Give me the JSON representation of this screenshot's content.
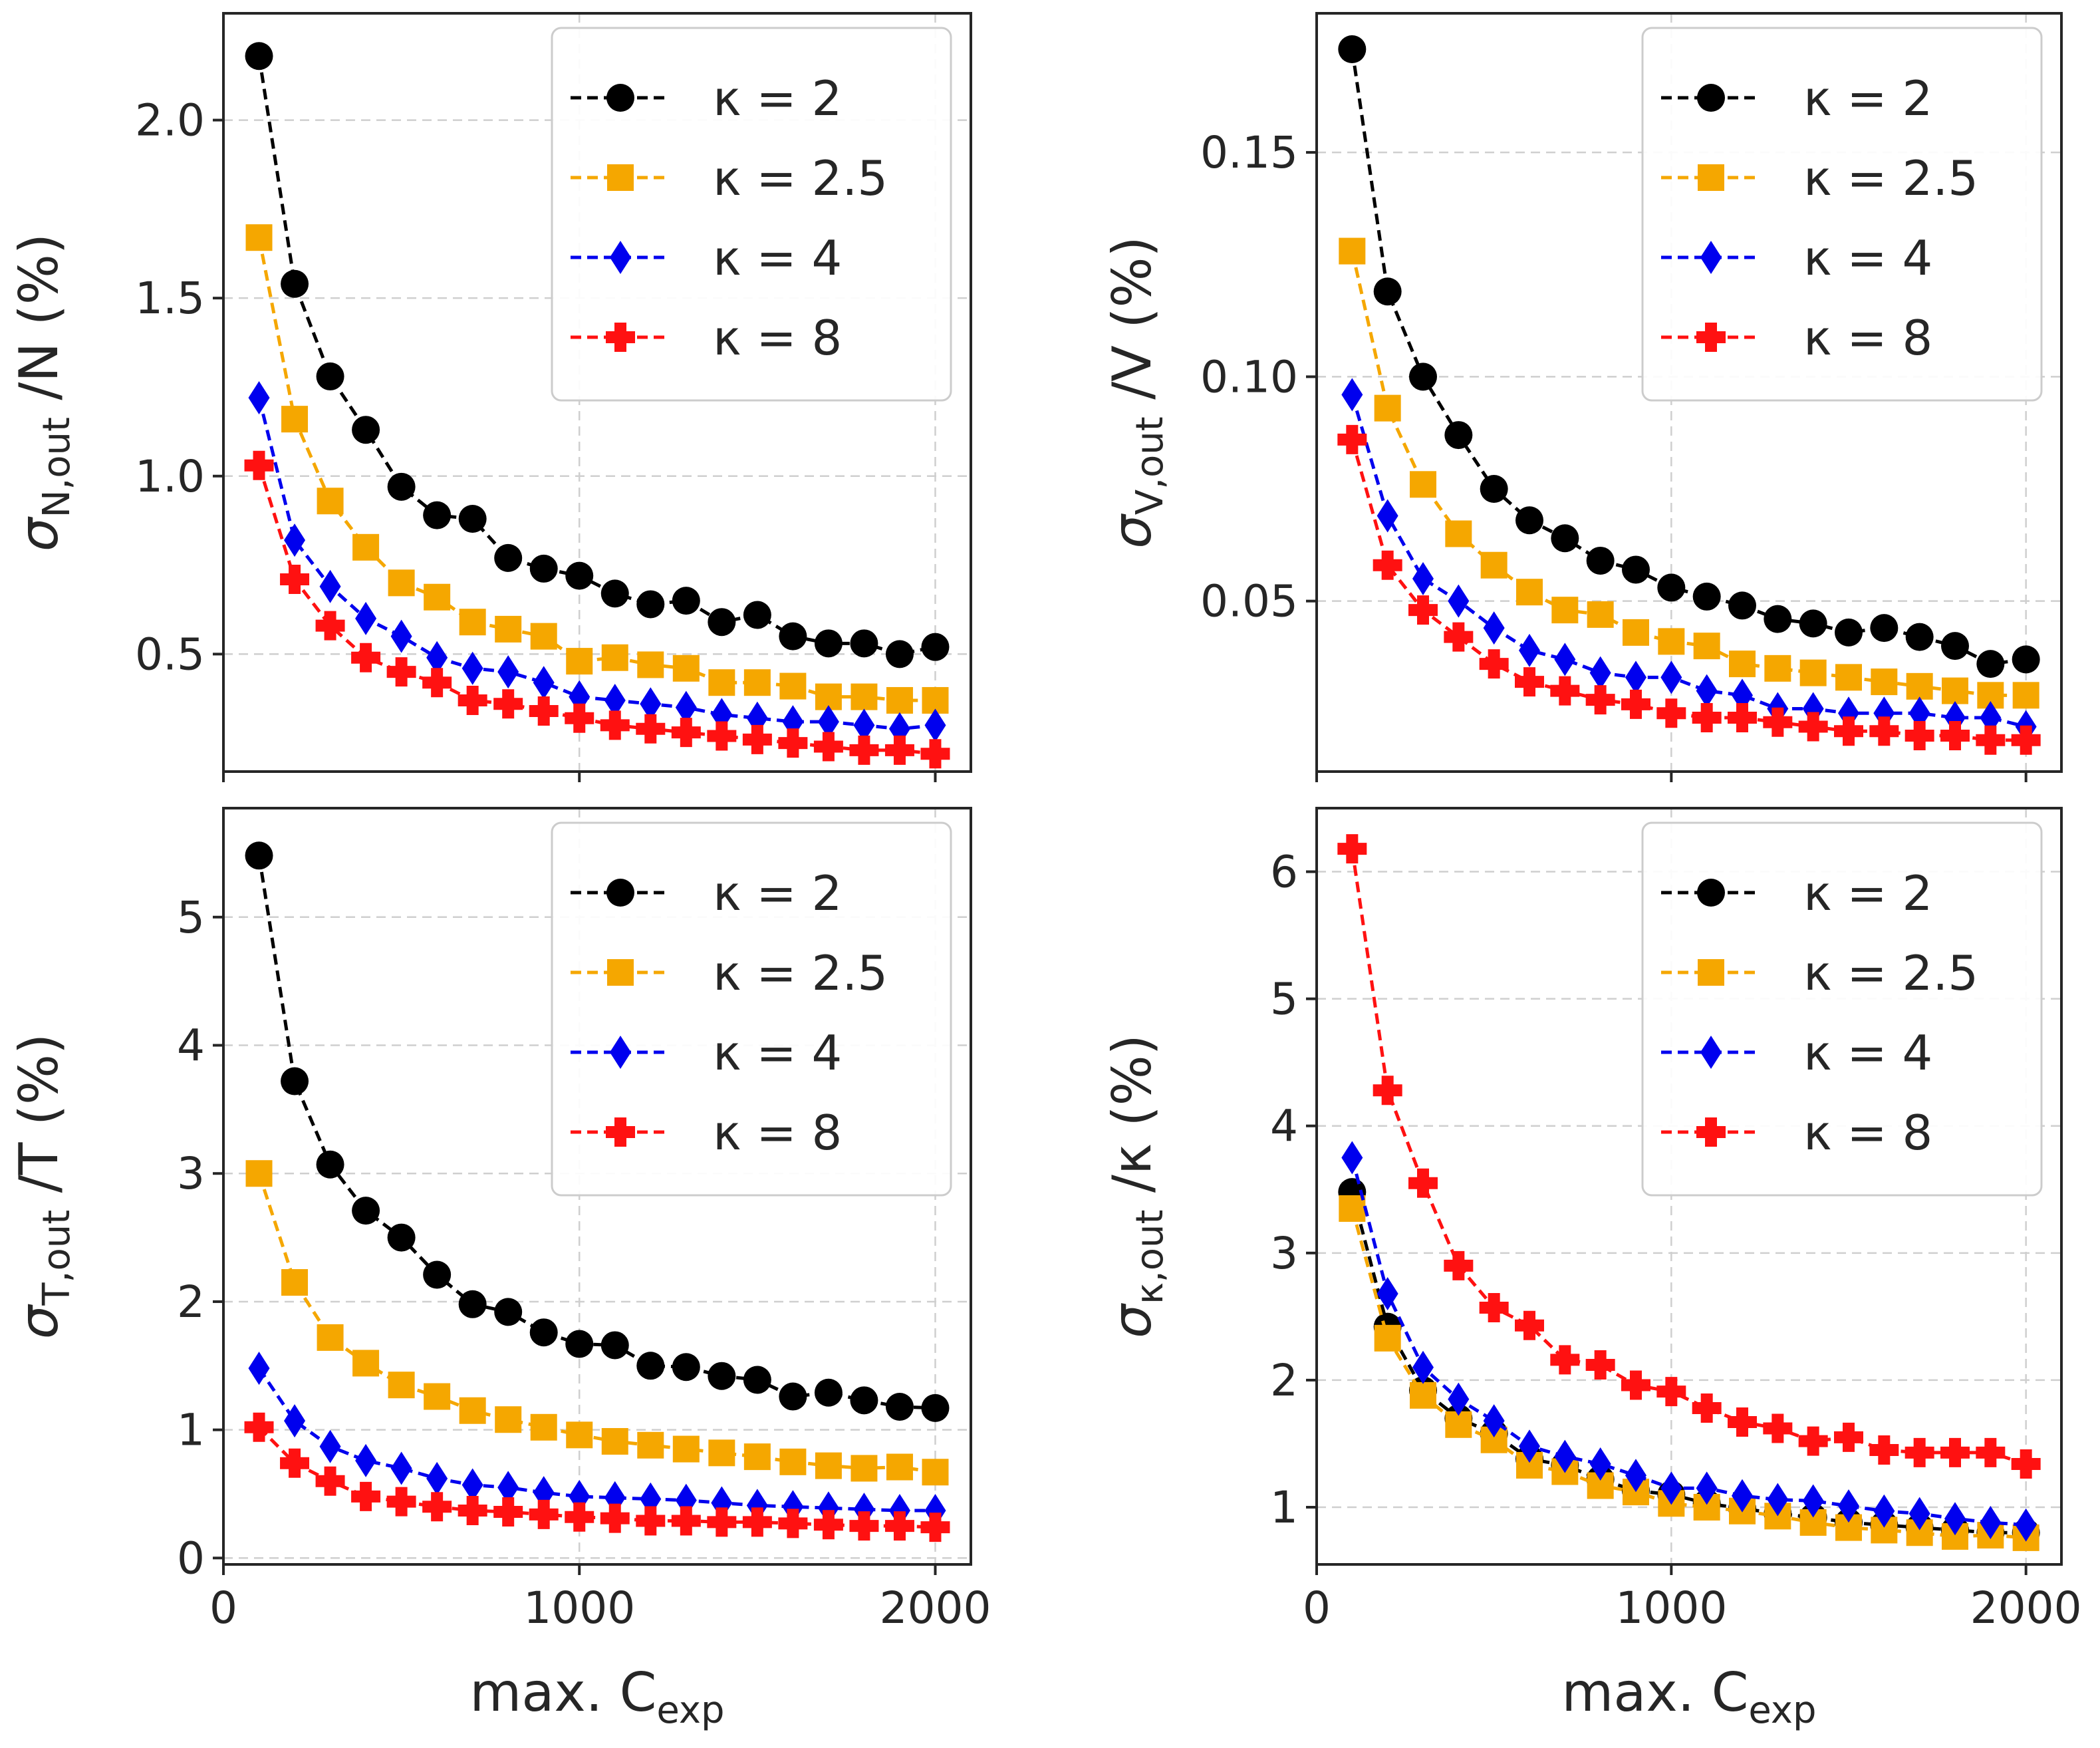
{
  "colors": {
    "k2": "#000000",
    "k25": "#f5a700",
    "k4": "#0000ee",
    "k8": "#ff1111"
  },
  "chart_data": [
    {
      "type": "line",
      "id": "N",
      "ylabel": {
        "main": "σ",
        "sub": "N,out",
        "tail": "/N (%)"
      },
      "xlabel": {
        "main": "max. C",
        "sub": "exp"
      },
      "xlim": [
        0,
        2100
      ],
      "ylim": [
        0.17,
        2.3
      ],
      "xticks": [
        0,
        1000,
        2000
      ],
      "xtick_labels": [
        "",
        "",
        ""
      ],
      "yticks": [
        0.5,
        1.0,
        1.5,
        2.0
      ],
      "ytick_labels": [
        "0.5",
        "1.0",
        "1.5",
        "2.0"
      ],
      "legend": "top-right",
      "x": [
        100,
        200,
        300,
        400,
        500,
        600,
        700,
        800,
        900,
        1000,
        1100,
        1200,
        1300,
        1400,
        1500,
        1600,
        1700,
        1800,
        1900,
        2000
      ],
      "series": [
        {
          "name": "κ = 2",
          "key": "k2",
          "marker": "circle",
          "values": [
            2.18,
            1.54,
            1.28,
            1.13,
            0.97,
            0.89,
            0.88,
            0.77,
            0.74,
            0.72,
            0.67,
            0.64,
            0.65,
            0.59,
            0.61,
            0.55,
            0.53,
            0.53,
            0.5,
            0.52
          ]
        },
        {
          "name": "κ = 2.5",
          "key": "k25",
          "marker": "square",
          "values": [
            1.67,
            1.16,
            0.93,
            0.8,
            0.7,
            0.66,
            0.59,
            0.57,
            0.55,
            0.48,
            0.49,
            0.47,
            0.46,
            0.42,
            0.42,
            0.41,
            0.38,
            0.38,
            0.37,
            0.37
          ]
        },
        {
          "name": "κ = 4",
          "key": "k4",
          "marker": "diamond",
          "values": [
            1.22,
            0.82,
            0.69,
            0.6,
            0.55,
            0.49,
            0.46,
            0.45,
            0.42,
            0.38,
            0.37,
            0.36,
            0.35,
            0.33,
            0.32,
            0.31,
            0.31,
            0.3,
            0.29,
            0.3
          ]
        },
        {
          "name": "κ = 8",
          "key": "k8",
          "marker": "plus",
          "values": [
            1.03,
            0.71,
            0.58,
            0.49,
            0.45,
            0.42,
            0.37,
            0.36,
            0.34,
            0.32,
            0.3,
            0.29,
            0.28,
            0.27,
            0.26,
            0.25,
            0.24,
            0.23,
            0.23,
            0.22
          ]
        }
      ]
    },
    {
      "type": "line",
      "id": "V",
      "ylabel": {
        "main": "σ",
        "sub": "V,out",
        "tail": "/V (%)"
      },
      "xlabel": {
        "main": "max. C",
        "sub": "exp"
      },
      "xlim": [
        0,
        2100
      ],
      "ylim": [
        0.012,
        0.181
      ],
      "xticks": [
        0,
        1000,
        2000
      ],
      "xtick_labels": [
        "",
        "",
        ""
      ],
      "yticks": [
        0.05,
        0.1,
        0.15
      ],
      "ytick_labels": [
        "0.05",
        "0.10",
        "0.15"
      ],
      "legend": "top-right",
      "x": [
        100,
        200,
        300,
        400,
        500,
        600,
        700,
        800,
        900,
        1000,
        1100,
        1200,
        1300,
        1400,
        1500,
        1600,
        1700,
        1800,
        1900,
        2000
      ],
      "series": [
        {
          "name": "κ = 2",
          "key": "k2",
          "marker": "circle",
          "values": [
            0.173,
            0.119,
            0.1,
            0.087,
            0.075,
            0.068,
            0.064,
            0.059,
            0.057,
            0.053,
            0.051,
            0.049,
            0.046,
            0.045,
            0.043,
            0.044,
            0.042,
            0.04,
            0.036,
            0.037
          ]
        },
        {
          "name": "κ = 2.5",
          "key": "k25",
          "marker": "square",
          "values": [
            0.128,
            0.093,
            0.076,
            0.065,
            0.058,
            0.052,
            0.048,
            0.047,
            0.043,
            0.041,
            0.04,
            0.036,
            0.035,
            0.034,
            0.033,
            0.032,
            0.031,
            0.03,
            0.029,
            0.029
          ]
        },
        {
          "name": "κ = 4",
          "key": "k4",
          "marker": "diamond",
          "values": [
            0.096,
            0.069,
            0.055,
            0.05,
            0.044,
            0.039,
            0.037,
            0.034,
            0.033,
            0.033,
            0.03,
            0.029,
            0.026,
            0.026,
            0.025,
            0.025,
            0.025,
            0.024,
            0.024,
            0.022
          ]
        },
        {
          "name": "κ = 8",
          "key": "k8",
          "marker": "plus",
          "values": [
            0.086,
            0.058,
            0.048,
            0.042,
            0.036,
            0.032,
            0.03,
            0.028,
            0.027,
            0.025,
            0.024,
            0.024,
            0.023,
            0.022,
            0.021,
            0.021,
            0.02,
            0.02,
            0.019,
            0.019
          ]
        }
      ]
    },
    {
      "type": "line",
      "id": "T",
      "ylabel": {
        "main": "σ",
        "sub": "T,out",
        "tail": "/T (%)"
      },
      "xlabel": {
        "main": "max. C",
        "sub": "exp"
      },
      "xlim": [
        0,
        2100
      ],
      "ylim": [
        -0.05,
        5.85
      ],
      "xticks": [
        0,
        1000,
        2000
      ],
      "xtick_labels": [
        "0",
        "1000",
        "2000"
      ],
      "yticks": [
        0,
        1,
        2,
        3,
        4,
        5
      ],
      "ytick_labels": [
        "0",
        "1",
        "2",
        "3",
        "4",
        "5"
      ],
      "legend": "top-right",
      "x": [
        100,
        200,
        300,
        400,
        500,
        600,
        700,
        800,
        900,
        1000,
        1100,
        1200,
        1300,
        1400,
        1500,
        1600,
        1700,
        1800,
        1900,
        2000
      ],
      "series": [
        {
          "name": "κ = 2",
          "key": "k2",
          "marker": "circle",
          "values": [
            5.48,
            3.72,
            3.07,
            2.71,
            2.5,
            2.21,
            1.98,
            1.92,
            1.76,
            1.67,
            1.66,
            1.5,
            1.49,
            1.42,
            1.39,
            1.26,
            1.29,
            1.23,
            1.18,
            1.17
          ]
        },
        {
          "name": "κ = 2.5",
          "key": "k25",
          "marker": "square",
          "values": [
            3.0,
            2.15,
            1.72,
            1.52,
            1.35,
            1.26,
            1.15,
            1.08,
            1.02,
            0.96,
            0.91,
            0.88,
            0.85,
            0.82,
            0.79,
            0.75,
            0.72,
            0.7,
            0.71,
            0.67
          ]
        },
        {
          "name": "κ = 4",
          "key": "k4",
          "marker": "diamond",
          "values": [
            1.48,
            1.07,
            0.87,
            0.76,
            0.7,
            0.62,
            0.57,
            0.55,
            0.51,
            0.48,
            0.47,
            0.46,
            0.45,
            0.43,
            0.41,
            0.4,
            0.39,
            0.38,
            0.37,
            0.37
          ]
        },
        {
          "name": "κ = 8",
          "key": "k8",
          "marker": "plus",
          "values": [
            1.02,
            0.74,
            0.6,
            0.48,
            0.44,
            0.4,
            0.37,
            0.36,
            0.34,
            0.32,
            0.31,
            0.29,
            0.29,
            0.28,
            0.28,
            0.27,
            0.26,
            0.25,
            0.25,
            0.24
          ]
        }
      ]
    },
    {
      "type": "line",
      "id": "kappa",
      "ylabel": {
        "main": "σ",
        "sub": "κ,out",
        "tail": "/κ (%)"
      },
      "xlabel": {
        "main": "max. C",
        "sub": "exp"
      },
      "xlim": [
        0,
        2100
      ],
      "ylim": [
        0.55,
        6.5
      ],
      "xticks": [
        0,
        1000,
        2000
      ],
      "xtick_labels": [
        "0",
        "1000",
        "2000"
      ],
      "yticks": [
        1,
        2,
        3,
        4,
        5,
        6
      ],
      "ytick_labels": [
        "1",
        "2",
        "3",
        "4",
        "5",
        "6"
      ],
      "legend": "top-right",
      "x": [
        100,
        200,
        300,
        400,
        500,
        600,
        700,
        800,
        900,
        1000,
        1100,
        1200,
        1300,
        1400,
        1500,
        1600,
        1700,
        1800,
        1900,
        2000
      ],
      "series": [
        {
          "name": "κ = 2",
          "key": "k2",
          "marker": "circle",
          "values": [
            3.48,
            2.42,
            1.92,
            1.7,
            1.58,
            1.38,
            1.33,
            1.22,
            1.13,
            1.1,
            1.03,
            0.99,
            0.95,
            0.92,
            0.88,
            0.86,
            0.84,
            0.82,
            0.8,
            0.8
          ]
        },
        {
          "name": "κ = 2.5",
          "key": "k25",
          "marker": "square",
          "values": [
            3.35,
            2.33,
            1.88,
            1.65,
            1.53,
            1.33,
            1.28,
            1.17,
            1.12,
            1.03,
            1.0,
            0.97,
            0.93,
            0.88,
            0.84,
            0.82,
            0.8,
            0.77,
            0.78,
            0.76
          ]
        },
        {
          "name": "κ = 4",
          "key": "k4",
          "marker": "diamond",
          "values": [
            3.75,
            2.68,
            2.1,
            1.85,
            1.68,
            1.48,
            1.4,
            1.34,
            1.25,
            1.15,
            1.15,
            1.09,
            1.06,
            1.05,
            1.01,
            0.97,
            0.95,
            0.91,
            0.88,
            0.86
          ]
        },
        {
          "name": "κ = 8",
          "key": "k8",
          "marker": "plus",
          "values": [
            6.18,
            4.28,
            3.55,
            2.9,
            2.57,
            2.43,
            2.16,
            2.12,
            1.96,
            1.91,
            1.78,
            1.67,
            1.62,
            1.52,
            1.55,
            1.45,
            1.43,
            1.43,
            1.43,
            1.34
          ]
        }
      ]
    }
  ]
}
